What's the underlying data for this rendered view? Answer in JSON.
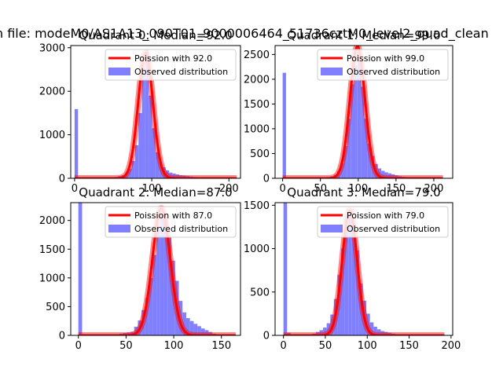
{
  "suptitle": "n file: modeM0/AS1A13_090T01_9000006464_51736cztM0_level2_quad_clean",
  "legend_observed": "Observed distribution",
  "colors": {
    "poisson": "#ff0000",
    "hist": "#8080ff"
  },
  "chart_data": [
    {
      "type": "bar",
      "title": "Quadrant 0: Median=92.0",
      "poisson_label": "Poission with 92.0",
      "median": 92.0,
      "xlim": [
        -5,
        215
      ],
      "ylim": [
        0,
        3050
      ],
      "xticks": [
        0,
        100,
        200
      ],
      "yticks": [
        0,
        1000,
        2000,
        3000
      ],
      "legend_position": "upper right",
      "bin_width": 4.4,
      "poisson_peak": 2880,
      "poisson_x_range": [
        0,
        210
      ],
      "hist": [
        [
          0,
          1590
        ],
        [
          52,
          30
        ],
        [
          56.4,
          50
        ],
        [
          60.8,
          70
        ],
        [
          65.2,
          120
        ],
        [
          69.6,
          220
        ],
        [
          74,
          400
        ],
        [
          78.4,
          760
        ],
        [
          82.8,
          1500
        ],
        [
          87.2,
          2480
        ],
        [
          91.6,
          2950
        ],
        [
          96,
          1900
        ],
        [
          100.4,
          1150
        ],
        [
          104.8,
          600
        ],
        [
          109.2,
          380
        ],
        [
          113.6,
          250
        ],
        [
          118,
          180
        ],
        [
          122.4,
          130
        ],
        [
          126.8,
          110
        ],
        [
          131.2,
          90
        ],
        [
          135.6,
          70
        ],
        [
          140,
          60
        ],
        [
          144.4,
          50
        ],
        [
          148.8,
          40
        ],
        [
          153.2,
          30
        ],
        [
          157.6,
          25
        ],
        [
          162,
          20
        ],
        [
          166.4,
          15
        ],
        [
          170.8,
          10
        ],
        [
          175.2,
          10
        ]
      ]
    },
    {
      "type": "bar",
      "title": "Quadrant 1: Median=99.0",
      "poisson_label": "Poission with 99.0",
      "median": 99.0,
      "xlim": [
        -10,
        225
      ],
      "ylim": [
        0,
        2680
      ],
      "xticks": [
        0,
        50,
        100,
        150,
        200
      ],
      "yticks": [
        0,
        500,
        1000,
        1500,
        2000,
        2500
      ],
      "legend_position": "upper right",
      "bin_width": 4.5,
      "poisson_peak": 2660,
      "poisson_x_range": [
        0,
        212
      ],
      "hist": [
        [
          0,
          2130
        ],
        [
          58.5,
          20
        ],
        [
          63,
          40
        ],
        [
          67.5,
          70
        ],
        [
          72,
          150
        ],
        [
          76.5,
          300
        ],
        [
          81,
          650
        ],
        [
          85.5,
          1200
        ],
        [
          90,
          1900
        ],
        [
          94.5,
          2280
        ],
        [
          99,
          2380
        ],
        [
          103.5,
          1850
        ],
        [
          108,
          1200
        ],
        [
          112.5,
          700
        ],
        [
          117,
          450
        ],
        [
          121.5,
          290
        ],
        [
          126,
          200
        ],
        [
          130.5,
          150
        ],
        [
          135,
          120
        ],
        [
          139.5,
          100
        ],
        [
          144,
          80
        ],
        [
          148.5,
          60
        ],
        [
          153,
          40
        ],
        [
          157.5,
          30
        ],
        [
          162,
          20
        ],
        [
          166.5,
          15
        ]
      ]
    },
    {
      "type": "bar",
      "title": "Quadrant 2: Median=87.0",
      "poisson_label": "Poission with 87.0",
      "median": 87.0,
      "xlim": [
        -8,
        170
      ],
      "ylim": [
        0,
        2310
      ],
      "xticks": [
        0,
        50,
        100,
        150
      ],
      "yticks": [
        0,
        500,
        1000,
        1500,
        2000
      ],
      "legend_position": "upper right",
      "bin_width": 3.9,
      "poisson_peak": 2210,
      "poisson_x_range": [
        0,
        165
      ],
      "hist": [
        [
          0,
          2310
        ],
        [
          39,
          20
        ],
        [
          42.9,
          30
        ],
        [
          46.8,
          40
        ],
        [
          50.7,
          50
        ],
        [
          54.6,
          60
        ],
        [
          58.5,
          150
        ],
        [
          62.4,
          260
        ],
        [
          66.3,
          440
        ],
        [
          70.2,
          650
        ],
        [
          74.1,
          1000
        ],
        [
          78,
          1400
        ],
        [
          81.9,
          1900
        ],
        [
          85.8,
          2080
        ],
        [
          89.7,
          2050
        ],
        [
          93.6,
          1700
        ],
        [
          97.5,
          1300
        ],
        [
          101.4,
          950
        ],
        [
          105.3,
          600
        ],
        [
          109.2,
          400
        ],
        [
          113.1,
          300
        ],
        [
          117,
          250
        ],
        [
          120.9,
          200
        ],
        [
          124.8,
          160
        ],
        [
          128.7,
          120
        ],
        [
          132.6,
          90
        ],
        [
          136.5,
          60
        ],
        [
          140.4,
          30
        ],
        [
          144.3,
          20
        ]
      ]
    },
    {
      "type": "bar",
      "title": "Quadrant 3: Median=79.0",
      "poisson_label": "Poission with 79.0",
      "median": 79.0,
      "xlim": [
        -10,
        202
      ],
      "ylim": [
        0,
        1530
      ],
      "xticks": [
        0,
        50,
        100,
        150,
        200
      ],
      "yticks": [
        0,
        500,
        1000,
        1500
      ],
      "legend_position": "upper right",
      "bin_width": 4.3,
      "poisson_peak": 1440,
      "poisson_x_range": [
        0,
        192
      ],
      "hist": [
        [
          0,
          1530
        ],
        [
          4.3,
          30
        ],
        [
          34.4,
          20
        ],
        [
          38.7,
          40
        ],
        [
          43,
          60
        ],
        [
          47.3,
          90
        ],
        [
          51.6,
          140
        ],
        [
          55.9,
          240
        ],
        [
          60.2,
          420
        ],
        [
          64.5,
          700
        ],
        [
          68.8,
          1000
        ],
        [
          73.1,
          1280
        ],
        [
          77.4,
          1400
        ],
        [
          81.7,
          1230
        ],
        [
          86,
          980
        ],
        [
          90.3,
          600
        ],
        [
          94.6,
          400
        ],
        [
          98.9,
          250
        ],
        [
          103.2,
          150
        ],
        [
          107.5,
          100
        ],
        [
          111.8,
          70
        ],
        [
          116.1,
          50
        ],
        [
          120.4,
          40
        ],
        [
          124.7,
          30
        ],
        [
          129,
          20
        ],
        [
          163.4,
          10
        ]
      ]
    }
  ]
}
